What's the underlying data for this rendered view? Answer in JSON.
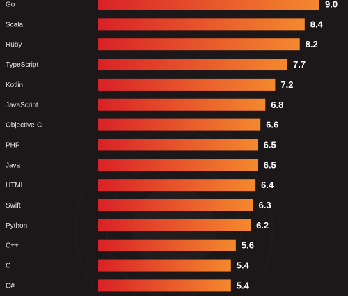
{
  "chart_data": {
    "type": "bar",
    "orientation": "horizontal",
    "categories": [
      "Go",
      "Scala",
      "Ruby",
      "TypeScript",
      "Kotlin",
      "JavaScript",
      "Objective-C",
      "PHP",
      "Java",
      "HTML",
      "Swift",
      "Python",
      "C++",
      "C",
      "C#"
    ],
    "values": [
      9.0,
      8.4,
      8.2,
      7.7,
      7.2,
      6.8,
      6.6,
      6.5,
      6.5,
      6.4,
      6.3,
      6.2,
      5.6,
      5.4,
      5.4
    ],
    "value_labels": [
      "9.0",
      "8.4",
      "8.2",
      "7.7",
      "7.2",
      "6.8",
      "6.6",
      "6.5",
      "6.5",
      "6.4",
      "6.3",
      "6.2",
      "5.6",
      "5.4",
      "5.4"
    ],
    "xlim": [
      0,
      9.0
    ],
    "grid": false,
    "legend": "none"
  },
  "colors": {
    "background": "#1c1719",
    "bar_start": "#d92127",
    "bar_end": "#f4892e",
    "label_text": "#e9e4e4",
    "value_text": "#ffffff"
  }
}
